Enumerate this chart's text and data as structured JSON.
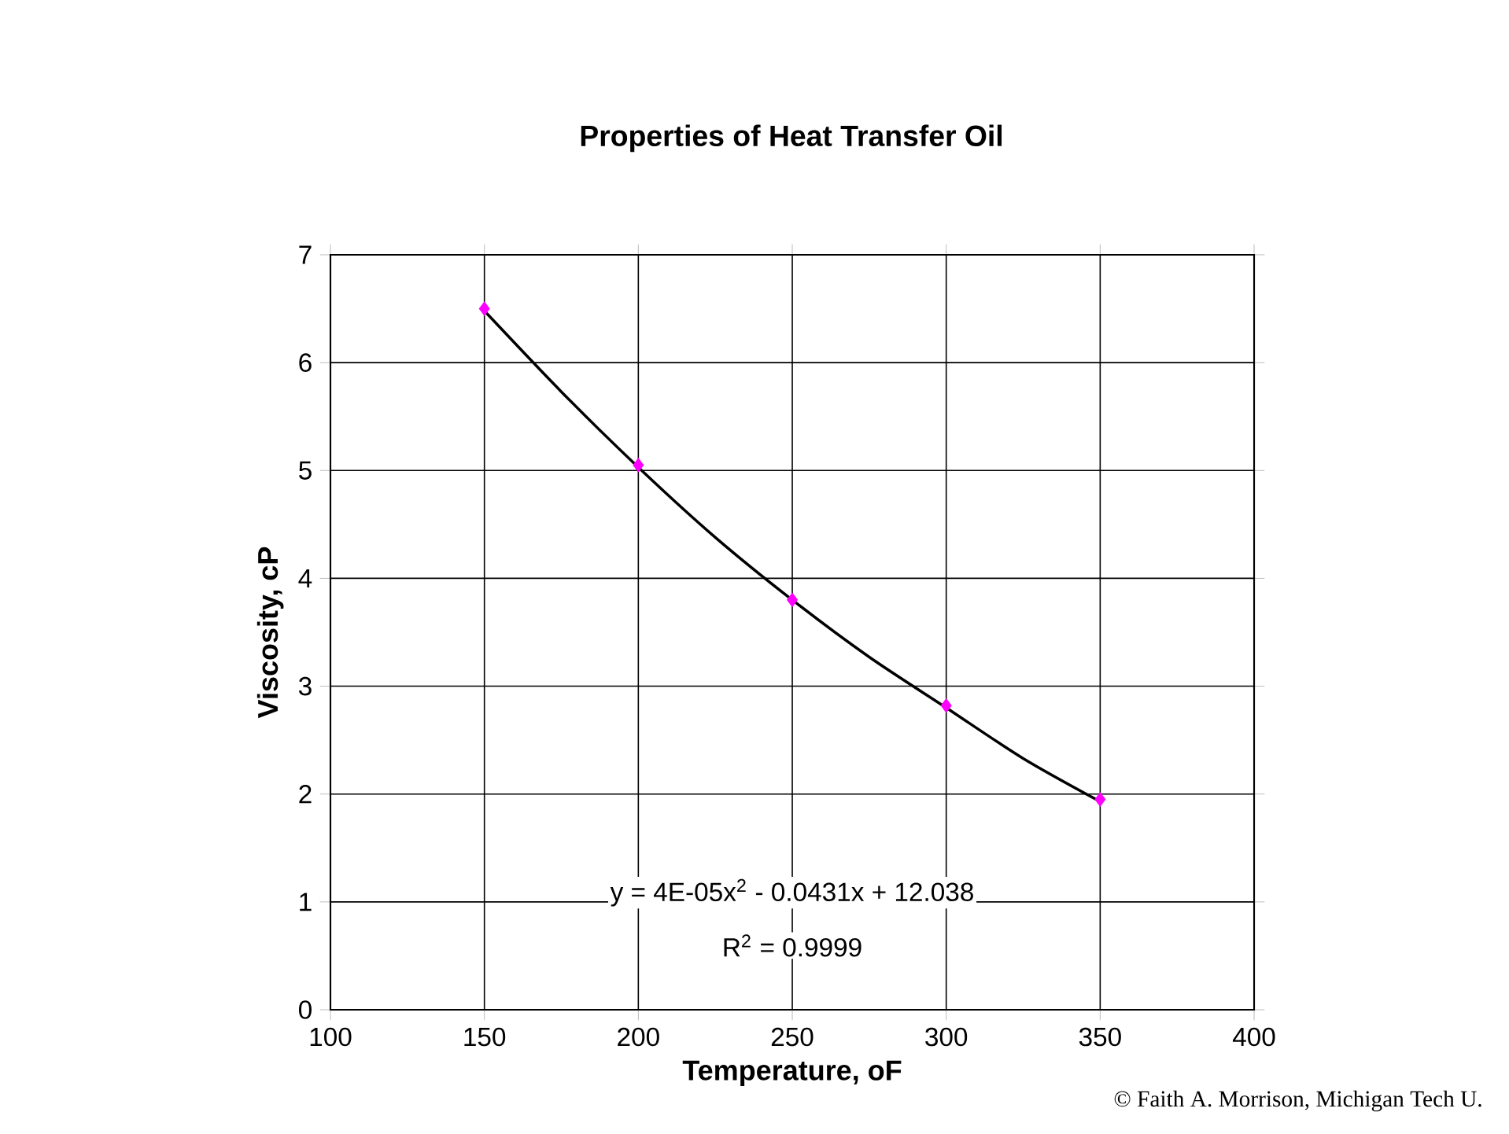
{
  "chart_data": {
    "type": "scatter",
    "title": "Properties of Heat Transfer Oil",
    "xlabel": "Temperature, oF",
    "ylabel": "Viscosity, cP",
    "xlim": [
      100,
      400
    ],
    "xticks": [
      100,
      150,
      200,
      250,
      300,
      350,
      400
    ],
    "ylim": [
      0,
      7
    ],
    "yticks": [
      0,
      1,
      2,
      3,
      4,
      5,
      6,
      7
    ],
    "grid": true,
    "series": [
      {
        "type": "scatter",
        "color": "#ff00ff",
        "marker": "diamond",
        "x": [
          150,
          200,
          250,
          300,
          350
        ],
        "values": [
          6.5,
          5.05,
          3.8,
          2.82,
          1.95
        ]
      },
      {
        "type": "line",
        "color": "#000000",
        "marker": "none",
        "line_style": "solid",
        "x": [
          150,
          175,
          200,
          225,
          250,
          275,
          300,
          325,
          350
        ],
        "values": [
          6.48,
          5.73,
          5.03,
          4.38,
          3.8,
          3.27,
          2.8,
          2.33,
          1.93
        ]
      }
    ],
    "annotations": [
      "y = 4E-05x$^{2}$ - 0.0431x + 12.038",
      "R$^{2}$ = 0.9999",
      "© Faith A. Morrison, Michigan Tech U."
    ]
  }
}
